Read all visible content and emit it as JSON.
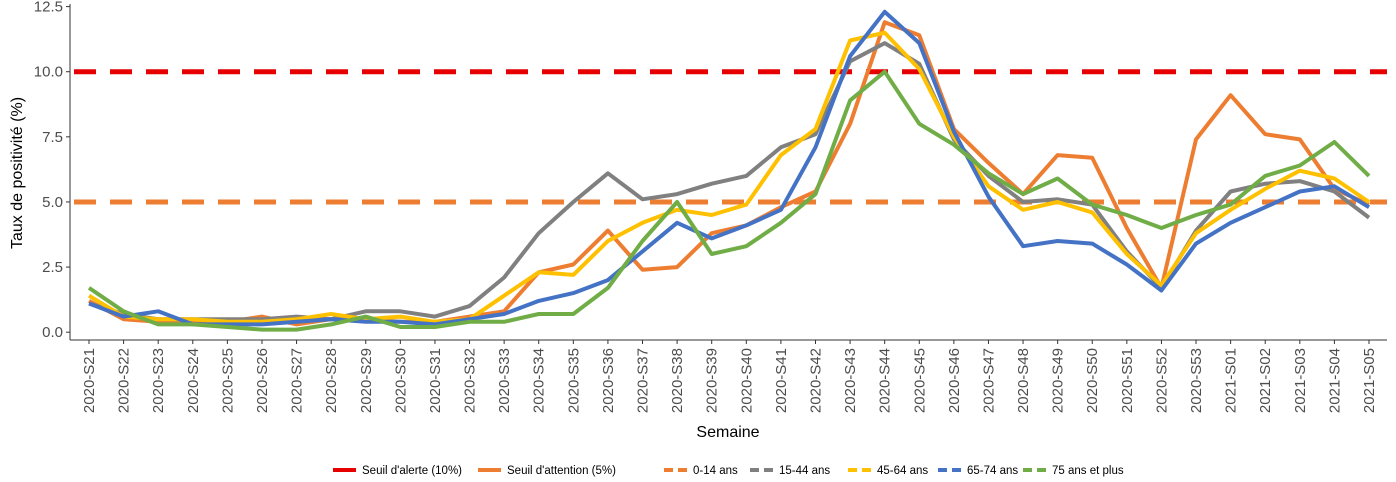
{
  "chart_data": {
    "type": "line",
    "xlabel": "Semaine",
    "ylabel": "Taux de positivité (%)",
    "ylim": [
      -0.3,
      12.6
    ],
    "yticks": [
      "0.0",
      "2.5",
      "5.0",
      "7.5",
      "10.0",
      "12.5"
    ],
    "ytick_values": [
      0,
      2.5,
      5,
      7.5,
      10,
      12.5
    ],
    "grid": false,
    "legend_position": "bottom",
    "categories": [
      "2020-S21",
      "2020-S22",
      "2020-S23",
      "2020-S24",
      "2020-S25",
      "2020-S26",
      "2020-S27",
      "2020-S28",
      "2020-S29",
      "2020-S30",
      "2020-S31",
      "2020-S32",
      "2020-S33",
      "2020-S34",
      "2020-S35",
      "2020-S36",
      "2020-S37",
      "2020-S38",
      "2020-S39",
      "2020-S40",
      "2020-S41",
      "2020-S42",
      "2020-S43",
      "2020-S44",
      "2020-S45",
      "2020-S46",
      "2020-S47",
      "2020-S48",
      "2020-S49",
      "2020-S50",
      "2020-S51",
      "2020-S52",
      "2020-S53",
      "2021-S01",
      "2021-S02",
      "2021-S03",
      "2021-S04",
      "2021-S05"
    ],
    "thresholds": [
      {
        "name": "Seuil d'alerte (10%)",
        "value": 10,
        "color": "#e60000"
      },
      {
        "name": "Seuil d'attention (5%)",
        "value": 5,
        "color": "#ed7d31"
      }
    ],
    "series": [
      {
        "name": "0-14 ans",
        "color": "#ed7d31",
        "values": [
          1.2,
          0.5,
          0.4,
          0.4,
          0.4,
          0.6,
          0.3,
          0.5,
          0.5,
          0.4,
          0.4,
          0.6,
          0.8,
          2.3,
          2.6,
          3.9,
          2.4,
          2.5,
          3.8,
          4.1,
          4.8,
          5.4,
          8.0,
          11.9,
          11.4,
          7.8,
          6.5,
          5.3,
          6.8,
          6.7,
          4.0,
          1.7,
          7.4,
          9.1,
          7.6,
          7.4,
          5.5,
          4.9
        ]
      },
      {
        "name": "15-44 ans",
        "color": "#808080",
        "values": [
          1.1,
          0.7,
          0.5,
          0.5,
          0.5,
          0.5,
          0.6,
          0.5,
          0.8,
          0.8,
          0.6,
          1.0,
          2.1,
          3.8,
          5.0,
          6.1,
          5.1,
          5.3,
          5.7,
          6.0,
          7.1,
          7.6,
          10.4,
          11.1,
          10.3,
          7.4,
          6.0,
          5.0,
          5.1,
          4.9,
          3.1,
          1.7,
          3.9,
          5.4,
          5.7,
          5.8,
          5.4,
          4.4
        ]
      },
      {
        "name": "45-64 ans",
        "color": "#ffc000",
        "values": [
          1.4,
          0.6,
          0.5,
          0.5,
          0.4,
          0.4,
          0.5,
          0.7,
          0.5,
          0.6,
          0.4,
          0.5,
          1.4,
          2.3,
          2.2,
          3.5,
          4.2,
          4.7,
          4.5,
          4.9,
          6.8,
          7.8,
          11.2,
          11.5,
          10.1,
          7.5,
          5.6,
          4.7,
          5.0,
          4.6,
          3.0,
          1.8,
          3.8,
          4.7,
          5.5,
          6.2,
          5.9,
          5.0
        ]
      },
      {
        "name": "65-74 ans",
        "color": "#4472c4",
        "values": [
          1.1,
          0.6,
          0.8,
          0.3,
          0.3,
          0.3,
          0.4,
          0.5,
          0.4,
          0.4,
          0.3,
          0.5,
          0.7,
          1.2,
          1.5,
          2.0,
          3.1,
          4.2,
          3.6,
          4.1,
          4.7,
          7.1,
          10.6,
          12.3,
          11.1,
          7.7,
          5.2,
          3.3,
          3.5,
          3.4,
          2.6,
          1.6,
          3.4,
          4.2,
          4.8,
          5.4,
          5.6,
          4.8
        ]
      },
      {
        "name": "75 ans et plus",
        "color": "#70ad47",
        "values": [
          1.7,
          0.8,
          0.3,
          0.3,
          0.2,
          0.1,
          0.1,
          0.3,
          0.6,
          0.2,
          0.2,
          0.4,
          0.4,
          0.7,
          0.7,
          1.7,
          3.5,
          5.0,
          3.0,
          3.3,
          4.2,
          5.3,
          8.9,
          10.0,
          8.0,
          7.2,
          6.1,
          5.3,
          5.9,
          4.9,
          4.5,
          4.0,
          4.5,
          4.9,
          6.0,
          6.4,
          7.3,
          6.0
        ]
      }
    ]
  }
}
